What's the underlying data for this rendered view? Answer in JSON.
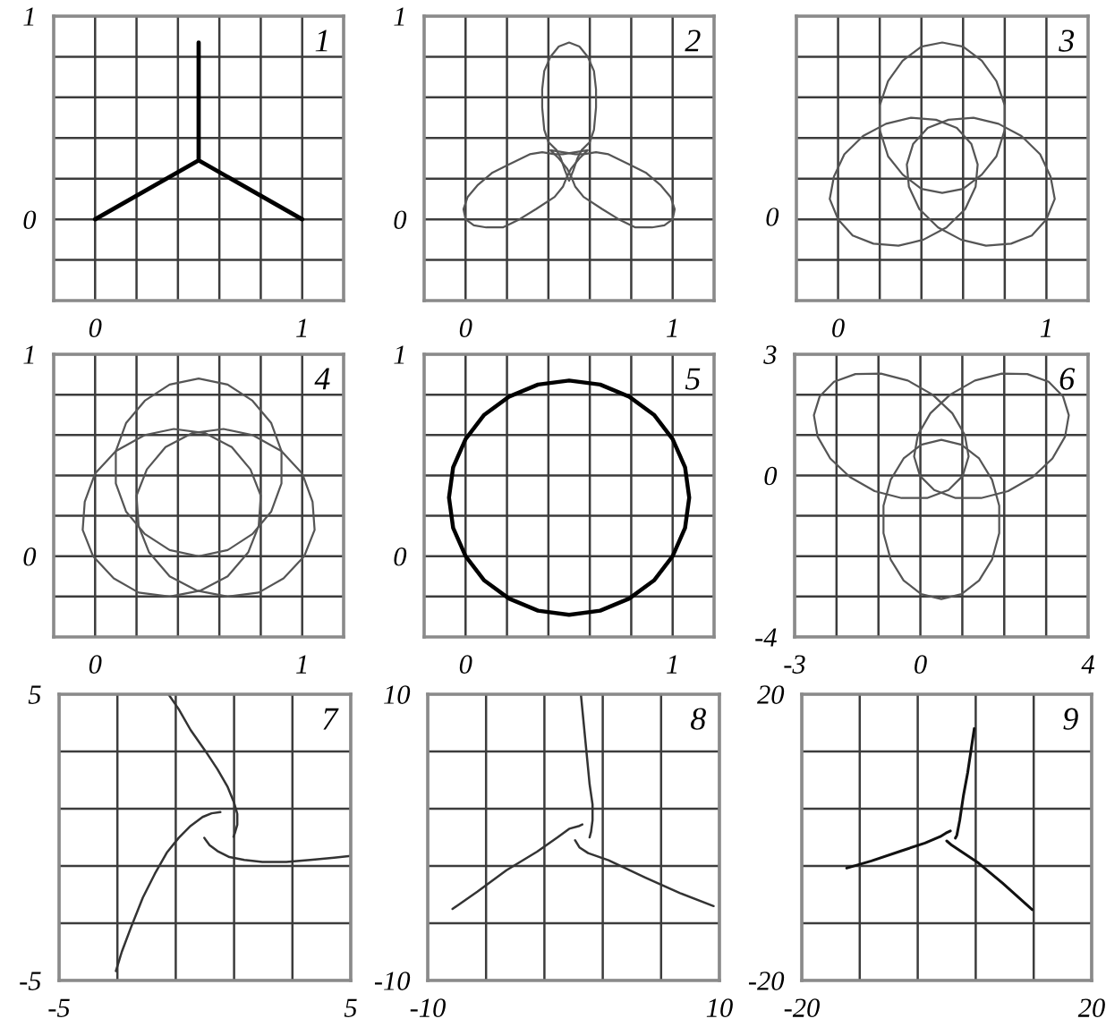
{
  "chart_data": [
    {
      "type": "line",
      "annotations": [
        "1"
      ],
      "xlim": [
        -0.2,
        1.2
      ],
      "ylim": [
        -0.4,
        1.0
      ],
      "xticks": [
        0,
        {
          "value": 0.2,
          "label": null
        },
        {
          "value": 0.4,
          "label": null
        },
        {
          "value": 0.6,
          "label": null
        },
        {
          "value": 0.8,
          "label": null
        },
        1
      ],
      "yticks": [
        {
          "value": -0.2,
          "label": null
        },
        0,
        {
          "value": 0.2,
          "label": null
        },
        {
          "value": 0.4,
          "label": null
        },
        {
          "value": 0.6,
          "label": null
        },
        {
          "value": 0.8,
          "label": null
        },
        1
      ],
      "grid": true,
      "series": [
        {
          "color": "#000000",
          "x": [
            0,
            0.5,
            1,
            null,
            0.5,
            0.5
          ],
          "values": [
            0,
            0.29,
            0,
            null,
            0.29,
            0.87
          ]
        }
      ]
    },
    {
      "type": "line",
      "annotations": [
        "2"
      ],
      "xlim": [
        -0.2,
        1.2
      ],
      "ylim": [
        -0.4,
        1.0
      ],
      "xticks": [
        0,
        {
          "value": 0.2,
          "label": null
        },
        {
          "value": 0.4,
          "label": null
        },
        {
          "value": 0.6,
          "label": null
        },
        {
          "value": 0.8,
          "label": null
        },
        1
      ],
      "yticks": [
        {
          "value": -0.2,
          "label": null
        },
        0,
        {
          "value": 0.2,
          "label": null
        },
        {
          "value": 0.4,
          "label": null
        },
        {
          "value": 0.6,
          "label": null
        },
        {
          "value": 0.8,
          "label": null
        },
        1
      ],
      "grid": true,
      "series": [
        {
          "color": "#555555",
          "x": [
            0.5,
            0.55,
            0.59,
            0.62,
            0.63,
            0.63,
            0.62,
            0.6,
            0.56,
            0.54,
            0.52,
            0.5,
            0.48,
            0.46,
            0.44,
            0.4,
            0.38,
            0.37,
            0.37,
            0.38,
            0.41,
            0.45,
            0.5,
            0.55
          ],
          "values": [
            0.87,
            0.85,
            0.8,
            0.73,
            0.64,
            0.55,
            0.44,
            0.38,
            0.34,
            0.3,
            0.24,
            0.19,
            0.24,
            0.3,
            0.34,
            0.38,
            0.44,
            0.55,
            0.64,
            0.73,
            0.8,
            0.85,
            0.87,
            0.85
          ]
        },
        {
          "color": "#555555",
          "x": [
            0.0,
            -0.01,
            0.01,
            0.06,
            0.13,
            0.21,
            0.31,
            0.37,
            0.43,
            0.47,
            0.53,
            0.59,
            0.55,
            0.51,
            0.49,
            0.47,
            0.43,
            0.34,
            0.26,
            0.18,
            0.1,
            0.04,
            0.0,
            -0.01
          ],
          "values": [
            0.0,
            0.05,
            0.11,
            0.17,
            0.23,
            0.27,
            0.32,
            0.33,
            0.32,
            0.32,
            0.33,
            0.34,
            0.3,
            0.25,
            0.21,
            0.16,
            0.11,
            0.05,
            0.0,
            -0.04,
            -0.04,
            -0.03,
            0.0,
            0.05
          ]
        },
        {
          "color": "#555555",
          "x": [
            1.0,
            1.01,
            0.99,
            0.94,
            0.87,
            0.79,
            0.69,
            0.63,
            0.57,
            0.53,
            0.47,
            0.41,
            0.45,
            0.49,
            0.51,
            0.53,
            0.57,
            0.66,
            0.74,
            0.82,
            0.9,
            0.96,
            1.0,
            1.01
          ],
          "values": [
            0.0,
            0.05,
            0.11,
            0.17,
            0.23,
            0.27,
            0.32,
            0.33,
            0.32,
            0.32,
            0.33,
            0.34,
            0.3,
            0.25,
            0.21,
            0.16,
            0.11,
            0.05,
            0.0,
            -0.04,
            -0.04,
            -0.03,
            0.0,
            0.05
          ]
        }
      ]
    },
    {
      "type": "line",
      "annotations": [
        "3",
        "0"
      ],
      "xlim": [
        -0.2,
        1.2
      ],
      "ylim": [
        -0.4,
        1.0
      ],
      "xticks": [
        0,
        {
          "value": 0.2,
          "label": null
        },
        {
          "value": 0.4,
          "label": null
        },
        {
          "value": 0.6,
          "label": null
        },
        {
          "value": 0.8,
          "label": null
        },
        1
      ],
      "yticks": [
        {
          "value": -0.2,
          "label": null
        },
        0,
        {
          "value": 0.2,
          "label": null
        },
        {
          "value": 0.4,
          "label": null
        },
        {
          "value": 0.6,
          "label": null
        },
        {
          "value": 0.8,
          "label": null
        },
        1
      ],
      "tick_labels": "x",
      "grid": true,
      "series": [
        {
          "color": "#555555",
          "x": [
            0.5,
            0.4,
            0.31,
            0.24,
            0.2,
            0.2,
            0.24,
            0.31,
            0.4,
            0.5,
            0.6,
            0.69,
            0.76,
            0.8,
            0.8,
            0.76,
            0.69,
            0.6,
            0.5,
            0.4
          ],
          "values": [
            0.87,
            0.85,
            0.78,
            0.68,
            0.56,
            0.44,
            0.31,
            0.22,
            0.15,
            0.13,
            0.15,
            0.22,
            0.31,
            0.44,
            0.56,
            0.68,
            0.78,
            0.85,
            0.87,
            0.85
          ]
        },
        {
          "color": "#555555",
          "x": [
            0.0,
            0.07,
            0.17,
            0.29,
            0.41,
            0.52,
            0.61,
            0.66,
            0.67,
            0.64,
            0.57,
            0.47,
            0.35,
            0.23,
            0.12,
            0.03,
            -0.02,
            -0.04,
            0.0,
            0.07
          ],
          "values": [
            0.0,
            -0.08,
            -0.12,
            -0.13,
            -0.1,
            -0.04,
            0.05,
            0.16,
            0.27,
            0.37,
            0.45,
            0.49,
            0.5,
            0.47,
            0.41,
            0.32,
            0.21,
            0.1,
            0.0,
            -0.08
          ]
        },
        {
          "color": "#555555",
          "x": [
            1.0,
            0.93,
            0.83,
            0.71,
            0.59,
            0.48,
            0.39,
            0.34,
            0.33,
            0.36,
            0.43,
            0.53,
            0.65,
            0.77,
            0.88,
            0.97,
            1.02,
            1.04,
            1.0,
            0.93
          ],
          "values": [
            0.0,
            -0.08,
            -0.12,
            -0.13,
            -0.1,
            -0.04,
            0.05,
            0.16,
            0.27,
            0.37,
            0.45,
            0.49,
            0.5,
            0.47,
            0.41,
            0.32,
            0.21,
            0.1,
            0.0,
            -0.08
          ]
        }
      ]
    },
    {
      "type": "line",
      "annotations": [
        "4"
      ],
      "xlim": [
        -0.2,
        1.2
      ],
      "ylim": [
        -0.4,
        1.0
      ],
      "xticks": [
        0,
        {
          "value": 0.2,
          "label": null
        },
        {
          "value": 0.4,
          "label": null
        },
        {
          "value": 0.6,
          "label": null
        },
        {
          "value": 0.8,
          "label": null
        },
        1
      ],
      "yticks": [
        {
          "value": -0.2,
          "label": null
        },
        0,
        {
          "value": 0.2,
          "label": null
        },
        {
          "value": 0.4,
          "label": null
        },
        {
          "value": 0.6,
          "label": null
        },
        {
          "value": 0.8,
          "label": null
        },
        1
      ],
      "grid": true,
      "series": [
        {
          "color": "#555555",
          "x": [
            0.5,
            0.36,
            0.24,
            0.15,
            0.1,
            0.1,
            0.15,
            0.24,
            0.36,
            0.5,
            0.64,
            0.76,
            0.85,
            0.9,
            0.9,
            0.85,
            0.76,
            0.64,
            0.5,
            0.36
          ],
          "values": [
            0.88,
            0.85,
            0.77,
            0.66,
            0.52,
            0.36,
            0.22,
            0.11,
            0.03,
            0.0,
            0.03,
            0.11,
            0.22,
            0.36,
            0.52,
            0.66,
            0.77,
            0.85,
            0.88,
            0.85
          ]
        },
        {
          "color": "#555555",
          "x": [
            -0.01,
            0.09,
            0.21,
            0.36,
            0.51,
            0.64,
            0.74,
            0.79,
            0.8,
            0.75,
            0.66,
            0.53,
            0.38,
            0.24,
            0.1,
            0.0,
            -0.05,
            -0.06,
            -0.01,
            0.09
          ],
          "values": [
            0.0,
            -0.11,
            -0.18,
            -0.2,
            -0.17,
            -0.1,
            0.02,
            0.15,
            0.3,
            0.43,
            0.54,
            0.61,
            0.63,
            0.6,
            0.52,
            0.41,
            0.27,
            0.13,
            0.0,
            -0.11
          ]
        },
        {
          "color": "#555555",
          "x": [
            1.01,
            0.91,
            0.79,
            0.64,
            0.49,
            0.36,
            0.26,
            0.21,
            0.2,
            0.25,
            0.34,
            0.47,
            0.62,
            0.76,
            0.9,
            1.0,
            1.05,
            1.06,
            1.01,
            0.91
          ],
          "values": [
            0.0,
            -0.11,
            -0.18,
            -0.2,
            -0.17,
            -0.1,
            0.02,
            0.15,
            0.3,
            0.43,
            0.54,
            0.61,
            0.63,
            0.6,
            0.52,
            0.41,
            0.27,
            0.13,
            0.0,
            -0.11
          ]
        }
      ]
    },
    {
      "type": "line",
      "annotations": [
        "5"
      ],
      "xlim": [
        -0.2,
        1.2
      ],
      "ylim": [
        -0.4,
        1.0
      ],
      "xticks": [
        0,
        {
          "value": 0.2,
          "label": null
        },
        {
          "value": 0.4,
          "label": null
        },
        {
          "value": 0.6,
          "label": null
        },
        {
          "value": 0.8,
          "label": null
        },
        1
      ],
      "yticks": [
        {
          "value": -0.2,
          "label": null
        },
        0,
        {
          "value": 0.2,
          "label": null
        },
        {
          "value": 0.4,
          "label": null
        },
        {
          "value": 0.6,
          "label": null
        },
        {
          "value": 0.8,
          "label": null
        },
        1
      ],
      "grid": true,
      "series": [
        {
          "color": "#000000",
          "x": [
            1.08,
            1.06,
            1.0,
            0.91,
            0.79,
            0.65,
            0.5,
            0.35,
            0.21,
            0.09,
            0.0,
            -0.06,
            -0.08,
            -0.06,
            0.0,
            0.09,
            0.21,
            0.35,
            0.5,
            0.65,
            0.79,
            0.91,
            1.0,
            1.06,
            1.08,
            1.06
          ],
          "values": [
            0.29,
            0.44,
            0.58,
            0.7,
            0.79,
            0.85,
            0.87,
            0.85,
            0.79,
            0.7,
            0.58,
            0.44,
            0.29,
            0.14,
            0.0,
            -0.12,
            -0.21,
            -0.27,
            -0.29,
            -0.27,
            -0.21,
            -0.12,
            0.0,
            0.14,
            0.29,
            0.44
          ]
        }
      ]
    },
    {
      "type": "line",
      "annotations": [
        "6"
      ],
      "xlim": [
        -3,
        4
      ],
      "ylim": [
        -4,
        3
      ],
      "xticks": [
        -3,
        {
          "value": -2,
          "label": null
        },
        {
          "value": -1,
          "label": null
        },
        0,
        {
          "value": 1,
          "label": null
        },
        {
          "value": 2,
          "label": null
        },
        {
          "value": 3,
          "label": null
        },
        4
      ],
      "yticks": [
        -4,
        {
          "value": -3,
          "label": null
        },
        {
          "value": -2,
          "label": null
        },
        {
          "value": -1,
          "label": null
        },
        0,
        {
          "value": 1,
          "label": null
        },
        {
          "value": 2,
          "label": null
        },
        3
      ],
      "grid": true,
      "series": [
        {
          "color": "#555555",
          "x": [
            0.5,
            0.98,
            1.4,
            1.71,
            1.88,
            1.88,
            1.71,
            1.4,
            0.98,
            0.5,
            0.02,
            -0.4,
            -0.71,
            -0.88,
            -0.88,
            -0.71,
            -0.4,
            0.02,
            0.5,
            0.98
          ],
          "values": [
            -3.06,
            -2.94,
            -2.6,
            -2.08,
            -1.43,
            -0.75,
            -0.11,
            0.42,
            0.76,
            0.88,
            0.76,
            0.42,
            -0.11,
            -0.75,
            -1.43,
            -2.08,
            -2.6,
            -2.94,
            -3.06,
            -2.94
          ]
        },
        {
          "color": "#555555",
          "x": [
            3.4,
            3.06,
            2.55,
            1.94,
            1.3,
            0.71,
            0.24,
            -0.06,
            -0.15,
            -0.01,
            0.33,
            0.84,
            1.45,
            2.09,
            2.68,
            3.15,
            3.45,
            3.54,
            3.4,
            3.06
          ],
          "values": [
            1.96,
            2.32,
            2.51,
            2.52,
            2.35,
            2.0,
            1.54,
            1.0,
            0.47,
            -0.01,
            -0.36,
            -0.56,
            -0.56,
            -0.39,
            -0.04,
            0.42,
            0.96,
            1.49,
            1.96,
            2.32
          ]
        },
        {
          "color": "#555555",
          "x": [
            -2.4,
            -2.06,
            -1.55,
            -0.94,
            -0.3,
            0.29,
            0.76,
            1.06,
            1.15,
            1.01,
            0.67,
            0.16,
            -0.45,
            -1.09,
            -1.68,
            -2.15,
            -2.45,
            -2.54,
            -2.4,
            -2.06
          ],
          "values": [
            1.96,
            2.32,
            2.51,
            2.52,
            2.35,
            2.0,
            1.54,
            1.0,
            0.47,
            -0.01,
            -0.36,
            -0.56,
            -0.56,
            -0.39,
            -0.04,
            0.42,
            0.96,
            1.49,
            1.96,
            2.32
          ]
        }
      ]
    },
    {
      "type": "line",
      "annotations": [
        "7"
      ],
      "xlim": [
        -5,
        5
      ],
      "ylim": [
        -5,
        5
      ],
      "xticks": [
        -5,
        {
          "value": -3,
          "label": null
        },
        {
          "value": -1,
          "label": null
        },
        {
          "value": 1,
          "label": null
        },
        {
          "value": 3,
          "label": null
        },
        5
      ],
      "yticks": [
        -5,
        {
          "value": -3,
          "label": null
        },
        {
          "value": -1,
          "label": null
        },
        {
          "value": 1,
          "label": null
        },
        {
          "value": 3,
          "label": null
        },
        5
      ],
      "grid": true,
      "series": [
        {
          "color": "#333333",
          "x": [
            -1.25,
            -0.9,
            -0.49,
            0.02,
            0.43,
            0.78,
            1.0,
            1.11,
            1.11,
            1.02,
            0.98,
            null,
            -3.05,
            -2.85,
            -2.54,
            -2.13,
            -1.72,
            -1.31,
            -0.9,
            -0.49,
            -0.08,
            0.23,
            0.53,
            null,
            -0.02,
            0.02,
            0.16,
            0.43,
            0.84,
            1.35,
            1.97,
            2.79,
            3.61,
            4.43,
            5.0
          ],
          "values": [
            5.0,
            4.48,
            3.75,
            3.01,
            2.38,
            1.76,
            1.21,
            0.82,
            0.44,
            0.13,
            0.02,
            null,
            -4.67,
            -4.0,
            -3.16,
            -2.11,
            -1.28,
            -0.54,
            -0.02,
            0.4,
            0.71,
            0.84,
            0.88,
            null,
            -0.02,
            -0.08,
            -0.27,
            -0.48,
            -0.69,
            -0.79,
            -0.86,
            -0.86,
            -0.79,
            -0.71,
            -0.65
          ]
        }
      ]
    },
    {
      "type": "line",
      "annotations": [
        "8"
      ],
      "xlim": [
        -10,
        10
      ],
      "ylim": [
        -10,
        10
      ],
      "xticks": [
        -10,
        {
          "value": -6,
          "label": null
        },
        {
          "value": -2,
          "label": null
        },
        {
          "value": 2,
          "label": null
        },
        {
          "value": 6,
          "label": null
        },
        10
      ],
      "yticks": [
        -10,
        {
          "value": -6,
          "label": null
        },
        {
          "value": -2,
          "label": null
        },
        {
          "value": 2,
          "label": null
        },
        {
          "value": 6,
          "label": null
        },
        10
      ],
      "grid": true,
      "series": [
        {
          "color": "#333333",
          "x": [
            0.5,
            0.7,
            0.9,
            1.1,
            1.3,
            1.3,
            1.2,
            1.1,
            null,
            -8.3,
            -6.6,
            -4.6,
            -2.5,
            -1.1,
            -0.3,
            0.4,
            0.6,
            null,
            0.1,
            0.4,
            1.0,
            2.4,
            4.9,
            7.3,
            9.6
          ],
          "values": [
            10.0,
            7.9,
            5.8,
            3.7,
            2.3,
            1.2,
            0.4,
            0.0,
            null,
            -5.0,
            -3.8,
            -2.3,
            -1.0,
            0.0,
            0.6,
            0.8,
            0.9,
            null,
            -0.2,
            -0.7,
            -1.1,
            -1.6,
            -2.8,
            -3.9,
            -4.8
          ]
        }
      ]
    },
    {
      "type": "line",
      "annotations": [
        "9"
      ],
      "xlim": [
        -20,
        20
      ],
      "ylim": [
        -20,
        20
      ],
      "xticks": [
        -20,
        {
          "value": -12,
          "label": null
        },
        {
          "value": -4,
          "label": null
        },
        {
          "value": 4,
          "label": null
        },
        {
          "value": 12,
          "label": null
        },
        20
      ],
      "yticks": [
        -20,
        {
          "value": -12,
          "label": null
        },
        {
          "value": -4,
          "label": null
        },
        {
          "value": 4,
          "label": null
        },
        {
          "value": 12,
          "label": null
        },
        20
      ],
      "grid": true,
      "series": [
        {
          "color": "#111111",
          "x": [
            3.8,
            3.4,
            2.9,
            2.3,
            1.8,
            1.4,
            1.2,
            null,
            -13.8,
            -10.4,
            -6.3,
            -3.0,
            -0.9,
            -0.1,
            0.5,
            null,
            0.0,
            0.7,
            1.9,
            4.4,
            7.7,
            11.8
          ],
          "values": [
            15.2,
            12.5,
            9.1,
            5.8,
            2.4,
            0.3,
            -0.1,
            null,
            -4.3,
            -3.3,
            -1.9,
            -0.8,
            0.1,
            0.6,
            0.9,
            null,
            -0.5,
            -1.1,
            -1.9,
            -3.6,
            -6.4,
            -10.1
          ]
        }
      ]
    }
  ]
}
